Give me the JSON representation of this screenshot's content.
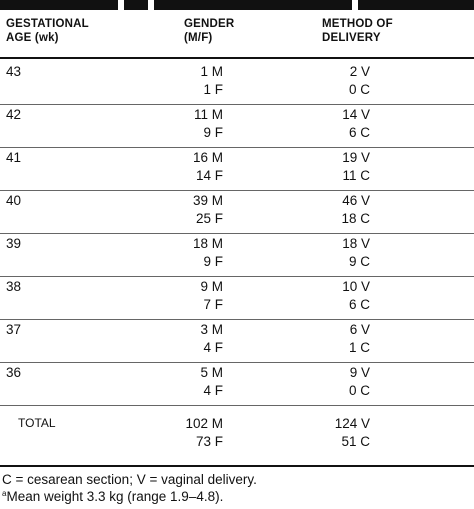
{
  "table": {
    "headers": {
      "col1_line1": "GESTATIONAL",
      "col1_line2": "AGE (wk)",
      "col2_line1": "GENDER",
      "col2_line2": "(M/F)",
      "col3_line1": "METHOD OF",
      "col3_line2": "DELIVERY"
    },
    "rows": [
      {
        "age": "43",
        "gender_m": "1 M",
        "gender_f": "1 F",
        "delivery_v": "2 V",
        "delivery_c": "0 C"
      },
      {
        "age": "42",
        "gender_m": "11 M",
        "gender_f": "9 F",
        "delivery_v": "14 V",
        "delivery_c": "6 C"
      },
      {
        "age": "41",
        "gender_m": "16 M",
        "gender_f": "14 F",
        "delivery_v": "19 V",
        "delivery_c": "11 C"
      },
      {
        "age": "40",
        "gender_m": "39 M",
        "gender_f": "25 F",
        "delivery_v": "46 V",
        "delivery_c": "18 C"
      },
      {
        "age": "39",
        "gender_m": "18 M",
        "gender_f": "9 F",
        "delivery_v": "18 V",
        "delivery_c": "9 C"
      },
      {
        "age": "38",
        "gender_m": "9 M",
        "gender_f": "7 F",
        "delivery_v": "10 V",
        "delivery_c": "6 C"
      },
      {
        "age": "37",
        "gender_m": "3 M",
        "gender_f": "4 F",
        "delivery_v": "6 V",
        "delivery_c": "1 C"
      },
      {
        "age": "36",
        "gender_m": "5 M",
        "gender_f": "4 F",
        "delivery_v": "9 V",
        "delivery_c": "0 C"
      }
    ],
    "total": {
      "label": "TOTAL",
      "gender_m": "102 M",
      "gender_f": "73 F",
      "delivery_v": "124 V",
      "delivery_c": "51 C"
    }
  },
  "footnotes": {
    "line1": "C = cesarean section; V = vaginal delivery.",
    "line2_marker": "a",
    "line2": "Mean weight 3.3 kg (range 1.9–4.8)."
  }
}
